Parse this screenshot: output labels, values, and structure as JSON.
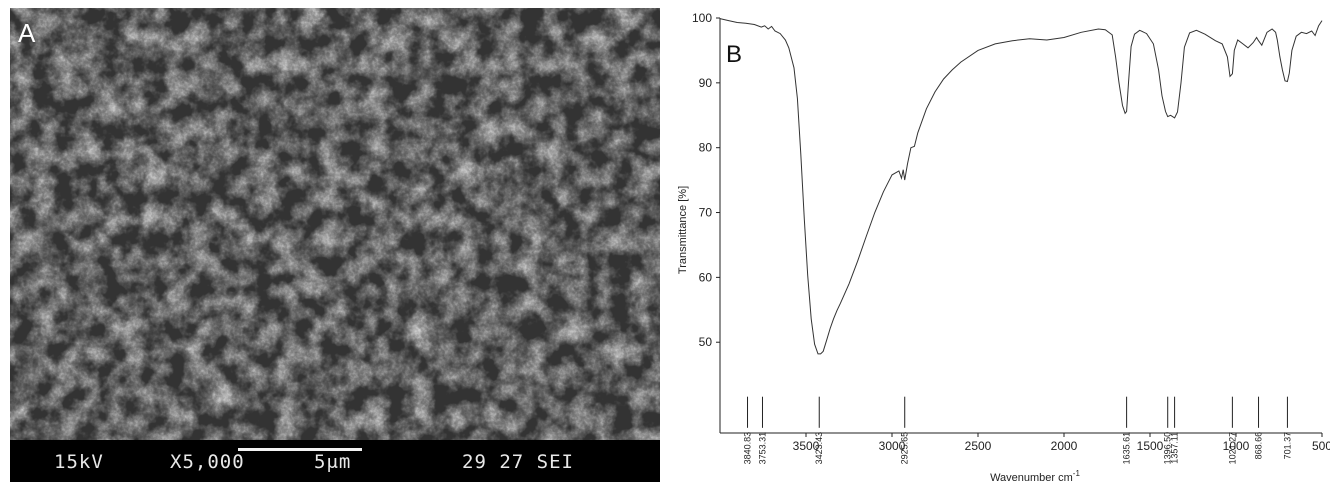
{
  "panel_a": {
    "label": "A",
    "info_bar": {
      "voltage": "15kV",
      "magnification": "X5,000",
      "scale": "5μm",
      "code": "29 27 SEI"
    }
  },
  "chart_data": {
    "type": "line",
    "panel_label": "B",
    "title": "",
    "xlabel": "Wavenumber cm",
    "xlabel_superscript": "-1",
    "ylabel": "Transmittance [%]",
    "xlim": [
      4000,
      500
    ],
    "ylim": [
      36,
      100
    ],
    "x_reversed": true,
    "grid": false,
    "x_ticks": [
      3500,
      3000,
      2500,
      2000,
      1500,
      1000,
      500
    ],
    "y_ticks": [
      50,
      60,
      70,
      80,
      90,
      100
    ],
    "series": [
      {
        "x": [
          4000,
          3950,
          3900,
          3850,
          3800,
          3760,
          3740,
          3720,
          3700,
          3680,
          3650,
          3620,
          3600,
          3570,
          3550,
          3530,
          3510,
          3490,
          3470,
          3450,
          3430,
          3415,
          3400,
          3380,
          3360,
          3340,
          3320,
          3300,
          3250,
          3200,
          3150,
          3100,
          3050,
          3000,
          2960,
          2945,
          2935,
          2926,
          2910,
          2890,
          2870,
          2850,
          2800,
          2750,
          2700,
          2650,
          2600,
          2500,
          2400,
          2300,
          2200,
          2100,
          2000,
          1900,
          1800,
          1760,
          1720,
          1700,
          1680,
          1660,
          1645,
          1636,
          1625,
          1610,
          1590,
          1560,
          1520,
          1480,
          1450,
          1430,
          1410,
          1397,
          1380,
          1357,
          1340,
          1320,
          1300,
          1270,
          1230,
          1180,
          1120,
          1080,
          1050,
          1035,
          1021,
          1010,
          990,
          960,
          930,
          900,
          880,
          869,
          850,
          820,
          790,
          770,
          760,
          745,
          730,
          715,
          701,
          690,
          675,
          650,
          620,
          590,
          560,
          540,
          520,
          500
        ],
        "y": [
          99.9,
          99.6,
          99.3,
          99.2,
          99.0,
          98.6,
          98.8,
          98.3,
          98.7,
          98.0,
          97.6,
          96.6,
          95.4,
          92.3,
          87.6,
          79.0,
          69.0,
          60.3,
          53.6,
          49.7,
          48.2,
          48.2,
          48.6,
          50.3,
          52.1,
          53.6,
          54.9,
          56.0,
          59.0,
          62.5,
          66.3,
          70.0,
          73.2,
          75.8,
          76.4,
          75.3,
          76.6,
          75.0,
          77.5,
          80.0,
          80.2,
          82.3,
          86.0,
          88.6,
          90.6,
          92.0,
          93.2,
          95.0,
          96.0,
          96.5,
          96.8,
          96.6,
          97.0,
          97.8,
          98.3,
          98.2,
          97.4,
          94.0,
          90.0,
          86.5,
          85.3,
          85.6,
          90.0,
          95.6,
          97.5,
          98.1,
          97.6,
          96.0,
          92.0,
          88.0,
          85.6,
          84.8,
          85.0,
          84.6,
          85.5,
          90.0,
          95.5,
          97.7,
          98.1,
          97.5,
          96.5,
          96.0,
          94.0,
          91.0,
          91.4,
          95.0,
          96.6,
          96.0,
          95.4,
          96.2,
          97.0,
          96.5,
          95.8,
          97.8,
          98.3,
          97.8,
          96.6,
          94.0,
          92.0,
          90.3,
          90.2,
          91.5,
          95.0,
          97.2,
          97.8,
          97.6,
          98.0,
          97.3,
          98.8,
          99.6
        ]
      }
    ],
    "peaks": [
      {
        "x": 3840,
        "label": "3840.83"
      },
      {
        "x": 3753,
        "label": "3753.31"
      },
      {
        "x": 3423,
        "label": "3423.43"
      },
      {
        "x": 2926,
        "label": "2925.65"
      },
      {
        "x": 1636,
        "label": "1635.61"
      },
      {
        "x": 1397,
        "label": "1396.50"
      },
      {
        "x": 1357,
        "label": "1357.11"
      },
      {
        "x": 1021,
        "label": "1021.27"
      },
      {
        "x": 869,
        "label": "868.66"
      },
      {
        "x": 701,
        "label": "701.37"
      }
    ]
  }
}
